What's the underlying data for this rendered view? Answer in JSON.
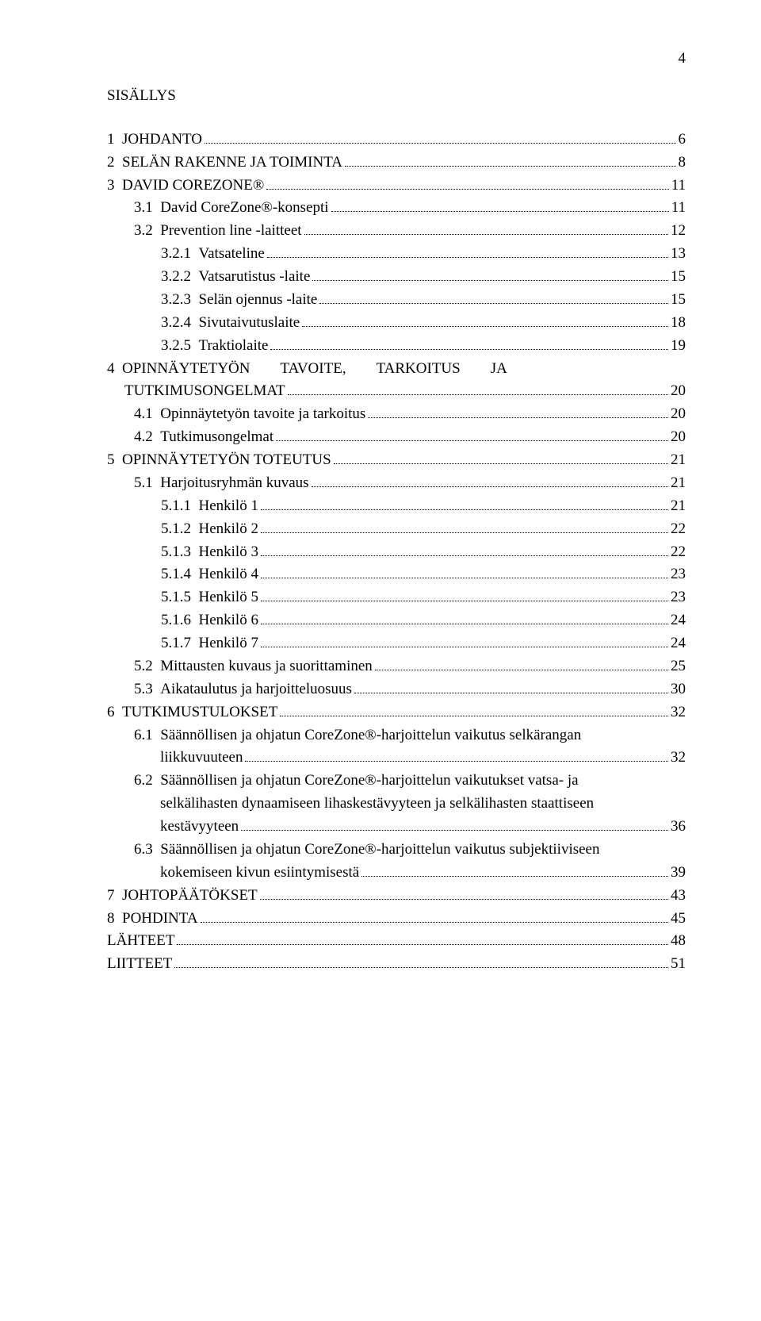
{
  "page_number": "4",
  "title": "SISÄLLYS",
  "toc": [
    {
      "level": 1,
      "num": "1",
      "label": "JOHDANTO",
      "page": "6"
    },
    {
      "level": 1,
      "num": "2",
      "label": "SELÄN RAKENNE JA TOIMINTA",
      "page": "8"
    },
    {
      "level": 1,
      "num": "3",
      "label": "DAVID COREZONE®",
      "page": "11"
    },
    {
      "level": 2,
      "num": "3.1",
      "label": "David CoreZone®-konsepti",
      "page": "11"
    },
    {
      "level": 2,
      "num": "3.2",
      "label": "Prevention line -laitteet",
      "page": "12"
    },
    {
      "level": 3,
      "num": "3.2.1",
      "label": "Vatsateline",
      "page": "13"
    },
    {
      "level": 3,
      "num": "3.2.2",
      "label": "Vatsarutistus -laite",
      "page": "15"
    },
    {
      "level": 3,
      "num": "3.2.3",
      "label": "Selän ojennus -laite",
      "page": "15"
    },
    {
      "level": 3,
      "num": "3.2.4",
      "label": "Sivutaivutuslaite",
      "page": "18"
    },
    {
      "level": 3,
      "num": "3.2.5",
      "label": "Traktiolaite",
      "page": "19"
    },
    {
      "level": 1,
      "num": "4",
      "label": "OPINNÄYTETYÖN TAVOITE, TARKOITUS JA TUTKIMUSONGELMAT",
      "page": "20",
      "wrap": true,
      "line1": "OPINNÄYTETYÖN&nbsp;&nbsp;&nbsp;&nbsp;&nbsp;&nbsp;&nbsp;&nbsp;TAVOITE,&nbsp;&nbsp;&nbsp;&nbsp;&nbsp;&nbsp;&nbsp;&nbsp;TARKOITUS&nbsp;&nbsp;&nbsp;&nbsp;&nbsp;&nbsp;&nbsp;&nbsp;JA",
      "line2": "TUTKIMUSONGELMAT"
    },
    {
      "level": 2,
      "num": "4.1",
      "label": "Opinnäytetyön tavoite ja tarkoitus",
      "page": "20"
    },
    {
      "level": 2,
      "num": "4.2",
      "label": "Tutkimusongelmat",
      "page": "20"
    },
    {
      "level": 1,
      "num": "5",
      "label": "OPINNÄYTETYÖN TOTEUTUS",
      "page": "21"
    },
    {
      "level": 2,
      "num": "5.1",
      "label": "Harjoitusryhmän kuvaus",
      "page": "21"
    },
    {
      "level": 3,
      "num": "5.1.1",
      "label": "Henkilö 1",
      "page": "21"
    },
    {
      "level": 3,
      "num": "5.1.2",
      "label": "Henkilö 2",
      "page": "22"
    },
    {
      "level": 3,
      "num": "5.1.3",
      "label": "Henkilö 3",
      "page": "22"
    },
    {
      "level": 3,
      "num": "5.1.4",
      "label": "Henkilö 4",
      "page": "23"
    },
    {
      "level": 3,
      "num": "5.1.5",
      "label": "Henkilö 5",
      "page": "23"
    },
    {
      "level": 3,
      "num": "5.1.6",
      "label": "Henkilö 6",
      "page": "24"
    },
    {
      "level": 3,
      "num": "5.1.7",
      "label": "Henkilö 7",
      "page": "24"
    },
    {
      "level": 2,
      "num": "5.2",
      "label": "Mittausten kuvaus ja suorittaminen",
      "page": "25"
    },
    {
      "level": 2,
      "num": "5.3",
      "label": "Aikataulutus ja harjoitteluosuus",
      "page": "30"
    },
    {
      "level": 1,
      "num": "6",
      "label": "TUTKIMUSTULOKSET",
      "page": "32"
    },
    {
      "level": 2,
      "num": "6.1",
      "label": "Säännöllisen ja ohjatun CoreZone®-harjoittelun vaikutus selkärangan liikkuvuuteen",
      "page": "32",
      "wrap": true,
      "line1": "Säännöllisen ja ohjatun CoreZone®-harjoittelun vaikutus selkärangan",
      "line2": "liikkuvuuteen"
    },
    {
      "level": 2,
      "num": "6.2",
      "label": "Säännöllisen ja ohjatun CoreZone®-harjoittelun vaikutukset vatsa- ja selkälihasten dynaamiseen lihaskestävyyteen ja selkälihasten staattiseen kestävyyteen",
      "page": "36",
      "wrap": true,
      "line1": "Säännöllisen ja ohjatun CoreZone®-harjoittelun vaikutukset vatsa- ja",
      "line2": "selkälihasten dynaamiseen lihaskestävyyteen ja selkälihasten staattiseen",
      "line3": "kestävyyteen"
    },
    {
      "level": 2,
      "num": "6.3",
      "label": "Säännöllisen ja ohjatun CoreZone®-harjoittelun vaikutus subjektiiviseen kokemiseen kivun esiintymisestä",
      "page": "39",
      "wrap": true,
      "line1": "Säännöllisen ja ohjatun CoreZone®-harjoittelun vaikutus subjektiiviseen",
      "line2": "kokemiseen kivun esiintymisestä"
    },
    {
      "level": 1,
      "num": "7",
      "label": "JOHTOPÄÄTÖKSET",
      "page": "43"
    },
    {
      "level": 1,
      "num": "8",
      "label": "POHDINTA",
      "page": "45"
    },
    {
      "level": 0,
      "num": "",
      "label": "LÄHTEET",
      "page": "48"
    },
    {
      "level": 0,
      "num": "",
      "label": "LIITTEET",
      "page": "51"
    }
  ]
}
